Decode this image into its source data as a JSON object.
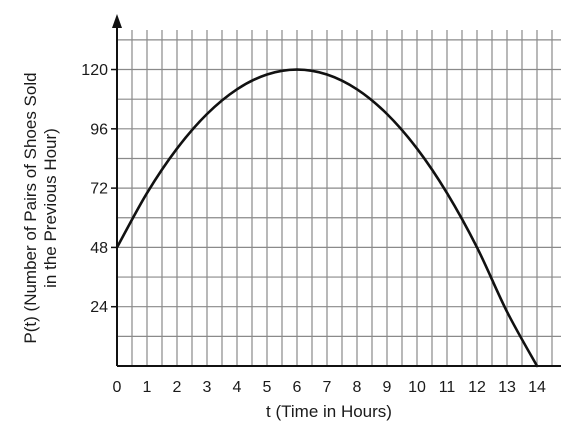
{
  "chart_data": {
    "type": "line",
    "xlabel": "t (Time in Hours)",
    "ylabel": [
      "P(t) (Number of Pairs of Shoes Sold",
      "in the Previous Hour)"
    ],
    "xlim": [
      0,
      14.8
    ],
    "ylim": [
      0,
      136
    ],
    "grid": true,
    "x_ticks": [
      0,
      1,
      2,
      3,
      4,
      5,
      6,
      7,
      8,
      9,
      10,
      11,
      12,
      13,
      14
    ],
    "x_tick_labels": [
      "0",
      "1",
      "2",
      "3",
      "4",
      "5",
      "6",
      "7",
      "8",
      "9",
      "10",
      "11",
      "12",
      "13",
      "14"
    ],
    "y_ticks": [
      24,
      48,
      72,
      96,
      120
    ],
    "y_tick_labels": [
      "24",
      "48",
      "72",
      "96",
      "120"
    ],
    "series": [
      {
        "x": [
          0,
          1,
          2,
          3,
          4,
          5,
          6,
          7,
          8,
          9,
          10,
          11,
          12,
          13,
          14
        ],
        "y": [
          48,
          70,
          88,
          102,
          112,
          118,
          120,
          118,
          112,
          102,
          88,
          70,
          48,
          22,
          0
        ]
      }
    ]
  }
}
